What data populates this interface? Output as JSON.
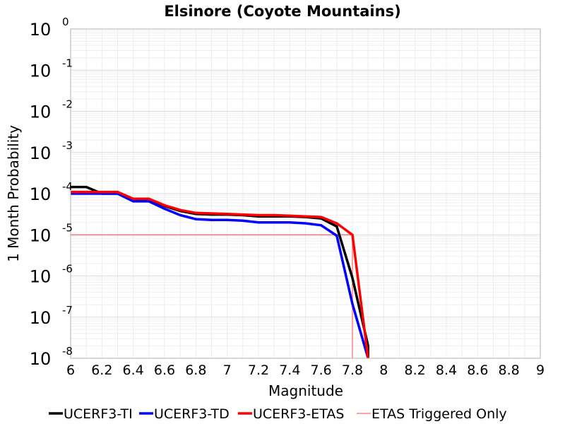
{
  "chart_data": {
    "type": "line",
    "title": "Elsinore (Coyote Mountains)",
    "xlabel": "Magnitude",
    "ylabel": "1 Month Probability",
    "xlim": [
      6,
      9
    ],
    "ylim": [
      1e-08,
      1
    ],
    "yscale": "log",
    "grid": true,
    "legend_position": "bottom",
    "x_ticks": [
      "6",
      "6.2",
      "6.4",
      "6.6",
      "6.8",
      "7",
      "7.2",
      "7.4",
      "7.6",
      "7.8",
      "8",
      "8.2",
      "8.4",
      "8.6",
      "8.8",
      "9"
    ],
    "y_ticks": [
      {
        "value": 1,
        "base": "10",
        "exp": "0"
      },
      {
        "value": 0.1,
        "base": "10",
        "exp": "-1"
      },
      {
        "value": 0.01,
        "base": "10",
        "exp": "-2"
      },
      {
        "value": 0.001,
        "base": "10",
        "exp": "-3"
      },
      {
        "value": 0.0001,
        "base": "10",
        "exp": "-4"
      },
      {
        "value": 1e-05,
        "base": "10",
        "exp": "-5"
      },
      {
        "value": 1e-06,
        "base": "10",
        "exp": "-6"
      },
      {
        "value": 1e-07,
        "base": "10",
        "exp": "-7"
      },
      {
        "value": 1e-08,
        "base": "10",
        "exp": "-8"
      }
    ],
    "series": [
      {
        "name": "UCERF3-TI",
        "color": "#000000",
        "x": [
          6.0,
          6.1,
          6.2,
          6.3,
          6.4,
          6.5,
          6.6,
          6.7,
          6.8,
          6.9,
          7.0,
          7.1,
          7.2,
          7.3,
          7.4,
          7.5,
          7.6,
          7.7,
          7.8,
          7.9,
          7.9
        ],
        "y": [
          0.000145,
          0.000145,
          0.0001,
          0.0001,
          7e-05,
          7e-05,
          5e-05,
          3.8e-05,
          3.2e-05,
          3.1e-05,
          3.1e-05,
          3e-05,
          2.8e-05,
          2.8e-05,
          2.8e-05,
          2.7e-05,
          2.5e-05,
          1.6e-05,
          9e-07,
          2e-08,
          1e-08
        ]
      },
      {
        "name": "UCERF3-TD",
        "color": "#0000ff",
        "x": [
          6.0,
          6.1,
          6.2,
          6.3,
          6.4,
          6.5,
          6.6,
          6.7,
          6.8,
          6.9,
          7.0,
          7.1,
          7.2,
          7.3,
          7.4,
          7.5,
          7.6,
          7.7,
          7.8,
          7.9
        ],
        "y": [
          0.0001,
          0.0001,
          0.0001,
          0.0001,
          6.5e-05,
          6.5e-05,
          4.3e-05,
          3e-05,
          2.4e-05,
          2.3e-05,
          2.3e-05,
          2.2e-05,
          2e-05,
          2e-05,
          2e-05,
          1.9e-05,
          1.7e-05,
          9.5e-06,
          2.1e-07,
          1e-08
        ]
      },
      {
        "name": "UCERF3-ETAS",
        "color": "#ff0000",
        "x": [
          6.0,
          6.1,
          6.2,
          6.3,
          6.4,
          6.5,
          6.6,
          6.7,
          6.8,
          6.9,
          7.0,
          7.1,
          7.2,
          7.3,
          7.4,
          7.5,
          7.6,
          7.7,
          7.8,
          7.9
        ],
        "y": [
          0.00011,
          0.00011,
          0.00011,
          0.00011,
          7.5e-05,
          7.5e-05,
          5.2e-05,
          4e-05,
          3.4e-05,
          3.3e-05,
          3.2e-05,
          3.1e-05,
          3e-05,
          3e-05,
          2.9e-05,
          2.8e-05,
          2.7e-05,
          1.9e-05,
          1e-05,
          1e-08
        ]
      },
      {
        "name": "ETAS Triggered Only",
        "color": "#ff6f6f",
        "x": [
          6.0,
          7.8,
          7.8
        ],
        "y": [
          1e-05,
          1e-05,
          1e-08
        ]
      }
    ]
  }
}
